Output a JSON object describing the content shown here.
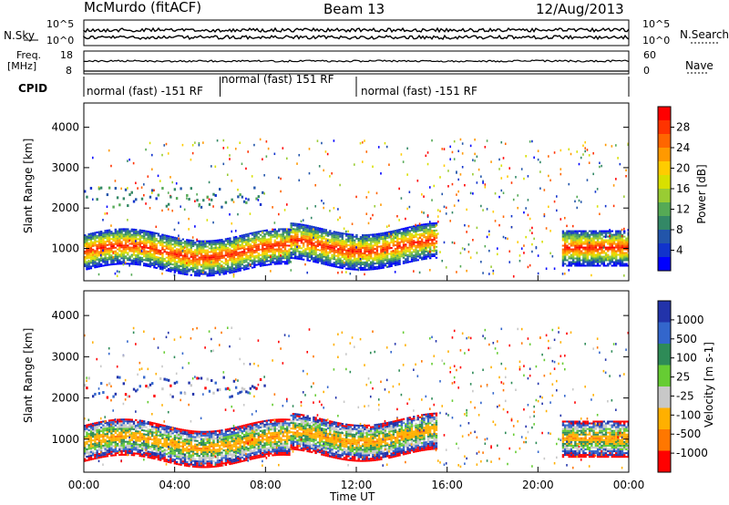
{
  "header": {
    "station": "McMurdo (fitACF)",
    "beam": "Beam 13",
    "date": "12/Aug/2013"
  },
  "top_panel": {
    "left_label": "N.Sky",
    "right_label": "N.Search",
    "left_ticks": [
      "10^5",
      "10^0"
    ],
    "right_ticks": [
      "10^5",
      "10^0"
    ]
  },
  "freq_panel": {
    "left_label_line1": "Freq.",
    "left_label_line2": "[MHz]",
    "right_label": "Nave",
    "left_ticks": [
      "18",
      "8"
    ],
    "right_ticks": [
      "60",
      "0"
    ]
  },
  "cpid": {
    "label": "CPID",
    "segments": [
      {
        "text": "normal (fast) -151 RF",
        "start_hr": 0,
        "end_hr": 6
      },
      {
        "text": "normal (fast) 151 RF",
        "start_hr": 6,
        "end_hr": 12
      },
      {
        "text": "normal (fast) -151 RF",
        "start_hr": 12,
        "end_hr": 24
      }
    ]
  },
  "chart_data": [
    {
      "type": "heatmap",
      "title": "",
      "ylabel": "Slant Range [km]",
      "xlabel": "",
      "ylim": [
        200,
        4600
      ],
      "y_ticks": [
        1000,
        2000,
        3000,
        4000
      ],
      "x_range_hours": [
        0,
        24
      ],
      "colorbar": {
        "label": "Power [dB]",
        "ticks": [
          "28",
          "24",
          "20",
          "16",
          "12",
          "8",
          "4"
        ],
        "colors": [
          "#ff0000",
          "#ff3300",
          "#ff6600",
          "#ff9900",
          "#ffcc00",
          "#d8e000",
          "#99cc33",
          "#55aa55",
          "#338866",
          "#2255aa",
          "#1133cc",
          "#0000ff"
        ]
      }
    },
    {
      "type": "heatmap",
      "title": "",
      "ylabel": "Slant Range [km]",
      "xlabel": "Time UT",
      "ylim": [
        200,
        4600
      ],
      "y_ticks": [
        1000,
        2000,
        3000,
        4000
      ],
      "x_range_hours": [
        0,
        24
      ],
      "x_ticks": [
        "00:00",
        "04:00",
        "08:00",
        "12:00",
        "16:00",
        "20:00",
        "00:00"
      ],
      "colorbar": {
        "label": "Velocity [m s-1]",
        "ticks": [
          "1000",
          "500",
          "100",
          "25",
          "-25",
          "-100",
          "-500",
          "-1000"
        ],
        "colors": [
          "#2233aa",
          "#3366cc",
          "#2e8b57",
          "#66cc33",
          "#c8c8c8",
          "#ffb000",
          "#ff7700",
          "#ff0000"
        ]
      }
    }
  ]
}
